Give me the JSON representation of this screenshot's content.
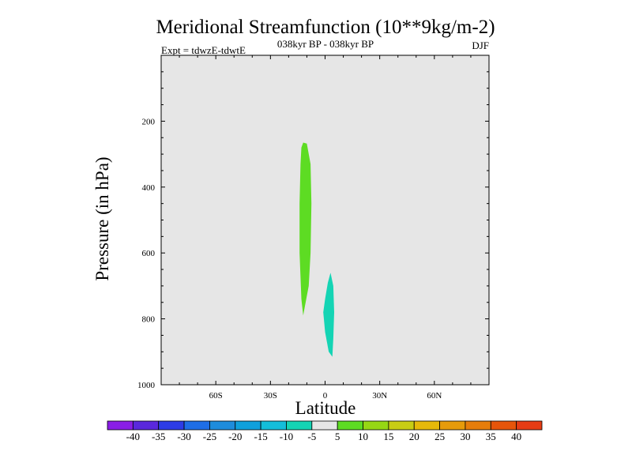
{
  "chart_data": {
    "type": "heatmap",
    "title": "Meridional Streamfunction (10**9kg/m-2)",
    "subtitle": "038kyr BP - 038kyr BP",
    "experiment": "Expt = tdwzE-tdwtE",
    "season": "DJF",
    "xlabel": "Latitude",
    "ylabel": "Pressure (in hPa)",
    "xlim": [
      -90,
      90
    ],
    "ylim": [
      1000,
      0
    ],
    "x_ticks": [
      -60,
      -30,
      0,
      30,
      60
    ],
    "x_tick_labels": [
      "60S",
      "30S",
      "0",
      "30N",
      "60N"
    ],
    "y_ticks": [
      200,
      400,
      600,
      800,
      1000
    ],
    "y_tick_labels": [
      "200",
      "400",
      "600",
      "800",
      "1000"
    ],
    "background_color": "#e6e6e6",
    "contour_regions": [
      {
        "value_range": [
          5,
          10
        ],
        "color": "#5ddc23",
        "outline": [
          [
            -12,
            265
          ],
          [
            -10,
            268
          ],
          [
            -8,
            330
          ],
          [
            -7.5,
            450
          ],
          [
            -8,
            600
          ],
          [
            -9,
            700
          ],
          [
            -11,
            760
          ],
          [
            -12,
            790
          ],
          [
            -13,
            740
          ],
          [
            -14,
            600
          ],
          [
            -14,
            450
          ],
          [
            -13.5,
            330
          ],
          [
            -13,
            280
          ]
        ]
      },
      {
        "value_range": [
          -10,
          -5
        ],
        "color": "#14d4b4",
        "outline": [
          [
            3,
            660
          ],
          [
            4.5,
            700
          ],
          [
            5,
            780
          ],
          [
            4.5,
            860
          ],
          [
            4,
            915
          ],
          [
            2,
            900
          ],
          [
            0,
            840
          ],
          [
            -1,
            780
          ],
          [
            0,
            740
          ],
          [
            1.5,
            690
          ]
        ]
      }
    ],
    "colorbar": {
      "labels": [
        "-40",
        "-35",
        "-30",
        "-25",
        "-20",
        "-15",
        "-10",
        "-5",
        "5",
        "10",
        "15",
        "20",
        "25",
        "30",
        "35",
        "40"
      ],
      "colors": [
        "#8a1ee6",
        "#5a28dc",
        "#2d3ce6",
        "#1e6ee6",
        "#1e8cdc",
        "#0fa0dc",
        "#14beda",
        "#14d4b4",
        "#e6e6e6",
        "#5ddc23",
        "#96d714",
        "#c8cd14",
        "#e6b90a",
        "#e69b0a",
        "#e67d0a",
        "#e6550a",
        "#e63c14"
      ]
    }
  }
}
